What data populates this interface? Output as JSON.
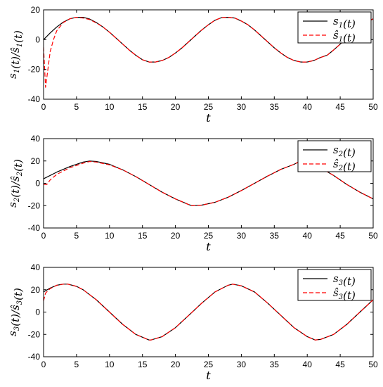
{
  "chart_data": [
    {
      "type": "line",
      "title": "",
      "xlabel": "t",
      "ylabel": "s1(t)/ŝ1(t)",
      "xlim": [
        0,
        50
      ],
      "ylim": [
        -40,
        20
      ],
      "xticks": [
        "0",
        "5",
        "10",
        "15",
        "20",
        "25",
        "30",
        "35",
        "40",
        "45",
        "50"
      ],
      "yticks": [
        "20",
        "0",
        "-20",
        "-40"
      ],
      "legend": "top-right",
      "grid": false,
      "series": [
        {
          "name": "s1(t)",
          "color": "#000000",
          "style": "solid",
          "x": [
            0,
            1,
            2,
            3,
            4,
            5,
            6,
            7,
            8,
            9,
            10,
            11,
            12,
            13,
            14,
            15,
            16,
            17,
            18,
            19,
            20,
            21,
            22,
            23,
            24,
            25,
            26,
            27,
            28,
            29,
            30,
            31,
            32,
            33,
            34,
            35,
            36,
            37,
            38,
            39,
            40,
            41,
            42,
            43,
            44,
            45,
            46,
            47,
            48,
            49,
            50
          ],
          "values": [
            0,
            4.5,
            8.5,
            11.8,
            14,
            15,
            15,
            13.8,
            11.5,
            8.5,
            5,
            1,
            -3,
            -7,
            -10.5,
            -13.5,
            -15,
            -15,
            -14,
            -12,
            -9,
            -5.5,
            -1.5,
            2.5,
            6.5,
            10,
            13,
            14.8,
            15,
            14.5,
            12.5,
            10,
            6.5,
            2.5,
            -1.5,
            -5.5,
            -9,
            -12,
            -14,
            -15,
            -15,
            -14,
            -12,
            -10.5,
            -7,
            -3,
            1,
            5,
            8.5,
            11.5,
            14
          ]
        },
        {
          "name": "ŝ1(t)",
          "color": "#ff0000",
          "style": "dashed",
          "x": [
            0,
            0.3,
            0.6,
            1,
            1.5,
            2,
            3,
            4,
            5,
            6,
            7,
            8,
            9,
            10,
            11,
            12,
            13,
            14,
            15,
            16,
            17,
            18,
            19,
            20,
            21,
            22,
            23,
            24,
            25,
            26,
            27,
            28,
            29,
            30,
            31,
            32,
            33,
            34,
            35,
            36,
            37,
            38,
            39,
            40,
            41,
            42,
            43,
            44,
            45,
            46,
            47,
            48,
            49,
            50
          ],
          "values": [
            -5,
            -32,
            -22,
            -8,
            0,
            6,
            11.5,
            14,
            15,
            14.5,
            13.5,
            11.2,
            8.5,
            5,
            1,
            -3,
            -7,
            -10.5,
            -13.5,
            -15,
            -15,
            -14,
            -12,
            -9,
            -5.5,
            -1.5,
            2.5,
            6.5,
            10,
            13,
            14.8,
            15,
            14.5,
            12.5,
            10,
            6.5,
            2.5,
            -1.5,
            -5.5,
            -9,
            -12,
            -14,
            -15,
            -15,
            -14,
            -12,
            -10.5,
            -7,
            -3,
            1,
            5,
            8.5,
            11.5,
            14
          ]
        }
      ]
    },
    {
      "type": "line",
      "title": "",
      "xlabel": "t",
      "ylabel": "s2(t)/ŝ2(t)",
      "xlim": [
        0,
        50
      ],
      "ylim": [
        -40,
        40
      ],
      "xticks": [
        "0",
        "5",
        "10",
        "15",
        "20",
        "25",
        "30",
        "35",
        "40",
        "45",
        "50"
      ],
      "yticks": [
        "40",
        "20",
        "0",
        "-20",
        "-40"
      ],
      "legend": "top-right",
      "grid": false,
      "series": [
        {
          "name": "s2(t)",
          "color": "#000000",
          "style": "solid",
          "x": [
            0,
            2,
            4,
            6,
            7,
            8,
            10,
            12,
            14,
            16,
            18,
            20,
            22,
            22.5,
            24,
            26,
            28,
            30,
            32,
            34,
            36,
            38,
            39,
            40,
            42,
            44,
            46,
            48,
            50
          ],
          "values": [
            4,
            10,
            15,
            19,
            20,
            19.5,
            17,
            12,
            6,
            -1,
            -8,
            -14,
            -19,
            -20,
            -19.5,
            -17,
            -12.5,
            -6.5,
            0,
            6.5,
            12.5,
            17,
            20,
            19,
            14,
            7,
            -1,
            -8,
            -14
          ]
        },
        {
          "name": "ŝ2(t)",
          "color": "#ff0000",
          "style": "dashed",
          "x": [
            0,
            0.5,
            1,
            2,
            4,
            6,
            7,
            8,
            10,
            12,
            14,
            16,
            18,
            20,
            22,
            22.5,
            24,
            26,
            28,
            30,
            32,
            34,
            36,
            38,
            39,
            40,
            42,
            44,
            46,
            48,
            50
          ],
          "values": [
            -1,
            -1,
            3,
            8,
            14,
            18,
            19.5,
            19,
            16.5,
            12,
            6,
            -1,
            -8,
            -14,
            -19,
            -20,
            -19.5,
            -17,
            -12.5,
            -6.5,
            0,
            6.5,
            12.5,
            17,
            20,
            19,
            14,
            7,
            -1,
            -8,
            -14
          ]
        }
      ]
    },
    {
      "type": "line",
      "title": "",
      "xlabel": "t",
      "ylabel": "s3(t)/ŝ3(t)",
      "xlim": [
        0,
        50
      ],
      "ylim": [
        -40,
        40
      ],
      "xticks": [
        "0",
        "5",
        "10",
        "15",
        "20",
        "25",
        "30",
        "35",
        "40",
        "45",
        "50"
      ],
      "yticks": [
        "40",
        "20",
        "0",
        "-20",
        "-40"
      ],
      "legend": "top-right",
      "grid": false,
      "series": [
        {
          "name": "s3(t)",
          "color": "#000000",
          "style": "solid",
          "x": [
            0,
            1,
            2,
            3,
            3.7,
            5,
            6,
            8,
            10,
            12,
            14,
            16,
            16.3,
            18,
            20,
            22,
            24,
            26,
            28,
            28.7,
            30,
            32,
            34,
            36,
            38,
            40,
            41.2,
            42,
            44,
            46,
            48,
            50
          ],
          "values": [
            18,
            21.5,
            24,
            25,
            25,
            23,
            20,
            11,
            0,
            -11,
            -20,
            -25,
            -25,
            -22,
            -14,
            -3,
            8,
            18,
            24,
            25,
            23.5,
            18,
            8,
            -3,
            -14,
            -22,
            -25,
            -24.5,
            -20,
            -11,
            0,
            11
          ]
        },
        {
          "name": "ŝ3(t)",
          "color": "#ff0000",
          "style": "dashed",
          "x": [
            0,
            0.3,
            1,
            2,
            3,
            3.7,
            5,
            6,
            8,
            10,
            12,
            14,
            16,
            16.3,
            18,
            20,
            22,
            24,
            26,
            28,
            28.7,
            30,
            32,
            34,
            36,
            38,
            40,
            41.2,
            42,
            44,
            46,
            48,
            50
          ],
          "values": [
            10,
            17,
            21,
            24,
            25,
            25,
            23,
            20,
            11,
            0,
            -11,
            -20,
            -25,
            -25,
            -22,
            -14,
            -3,
            8,
            18,
            24,
            25,
            23.5,
            18,
            8,
            -3,
            -14,
            -22,
            -25,
            -24.5,
            -20,
            -11,
            0,
            11
          ]
        }
      ]
    }
  ]
}
